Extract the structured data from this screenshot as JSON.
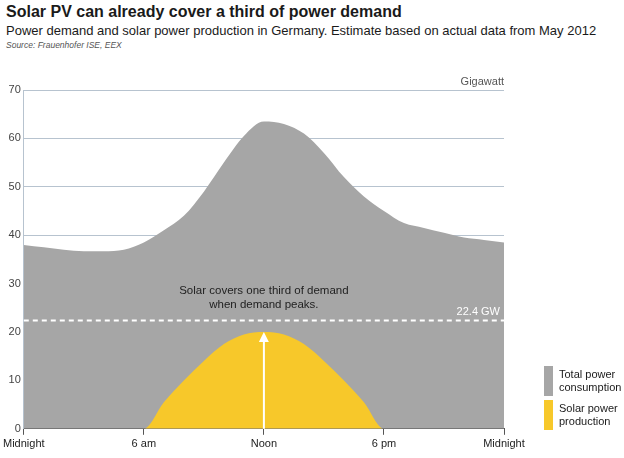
{
  "chart_data": {
    "type": "area",
    "title": "Solar PV can already cover a third of power demand",
    "subtitle": "Power demand and solar power production in Germany. Estimate based on actual data from May 2012",
    "source": "Source:  Frauenhofer ISE, EEX",
    "y_label": "Gigawatt",
    "x": [
      0,
      1,
      2,
      3,
      4,
      5,
      6,
      7,
      8,
      9,
      10,
      11,
      12,
      13,
      14,
      15,
      16,
      17,
      18,
      19,
      20,
      21,
      22,
      23,
      24
    ],
    "series": [
      {
        "name": "Total power consumption",
        "color": "#a6a6a6",
        "values": [
          38,
          37.5,
          37,
          36.7,
          36.7,
          37,
          38.5,
          41,
          44,
          49,
          55,
          60.5,
          63.5,
          63,
          61,
          57,
          52,
          48,
          45,
          42.5,
          41.5,
          40.5,
          39.5,
          39,
          38.5
        ]
      },
      {
        "name": "Solar power production",
        "color": "#f7c82a",
        "values": [
          0,
          0,
          0,
          0,
          0,
          0,
          0,
          5.5,
          10,
          14,
          17.5,
          19.5,
          20,
          19.5,
          17.5,
          14,
          10,
          5.5,
          0,
          0,
          0,
          0,
          0,
          0,
          0
        ]
      }
    ],
    "xlim": [
      0,
      24
    ],
    "xticks": [
      {
        "value": 0,
        "label": "Midnight"
      },
      {
        "value": 6,
        "label": "6 am"
      },
      {
        "value": 12,
        "label": "Noon"
      },
      {
        "value": 18,
        "label": "6 pm"
      },
      {
        "value": 24,
        "label": "Midnight"
      }
    ],
    "ylim": [
      0,
      70
    ],
    "yticks": [
      0,
      10,
      20,
      30,
      40,
      50,
      60,
      70
    ],
    "grid": true,
    "legend": "lower right",
    "annotations": [
      {
        "text": [
          "Solar covers one third of demand",
          "when demand peaks."
        ],
        "x": 12
      },
      {
        "text": "22.4 GW",
        "y": 22.4
      }
    ]
  }
}
